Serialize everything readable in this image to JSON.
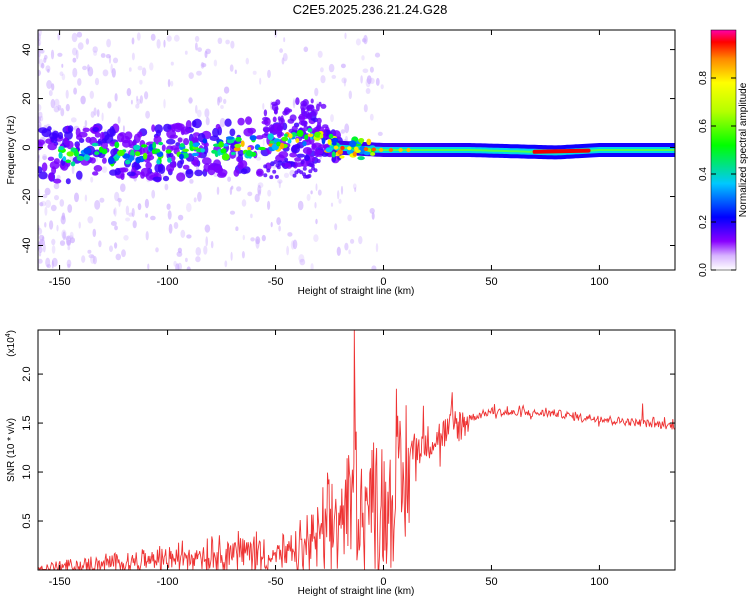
{
  "title": "C2E5.2025.236.21.24.G28",
  "chart_data": [
    {
      "type": "heatmap",
      "name": "spectrogram",
      "xlabel": "Height of straight line (km)",
      "ylabel": "Frequency (Hz)",
      "xlim": [
        -160,
        135
      ],
      "ylim": [
        -50,
        48
      ],
      "xticks": [
        -150,
        -100,
        -50,
        0,
        50,
        100
      ],
      "yticks": [
        -40,
        -20,
        0,
        20,
        40
      ],
      "colorbar": {
        "label": "Normalized spectral amplitude",
        "range": [
          0,
          1
        ],
        "ticks": [
          "0.0",
          "0.2",
          "0.4",
          "0.6",
          "0.8"
        ],
        "tick_values": [
          0,
          0.2,
          0.4,
          0.6,
          0.8
        ]
      },
      "ridge_center_hz": [
        {
          "x": -155,
          "y": -3
        },
        {
          "x": -100,
          "y": -2
        },
        {
          "x": -70,
          "y": 0
        },
        {
          "x": -50,
          "y": 1
        },
        {
          "x": -40,
          "y": 3
        },
        {
          "x": -30,
          "y": 4
        },
        {
          "x": -22,
          "y": 0
        },
        {
          "x": 0,
          "y": -1
        },
        {
          "x": 40,
          "y": -1
        },
        {
          "x": 80,
          "y": -2
        },
        {
          "x": 100,
          "y": -1
        },
        {
          "x": 135,
          "y": -1
        }
      ],
      "peak_amplitude_x_km": [
        70,
        95
      ]
    },
    {
      "type": "line",
      "name": "snr",
      "xlabel": "Height of straight line (km)",
      "ylabel": "SNR (10 * v/v)",
      "scale_label": "(x10",
      "scale_exponent": "4",
      "scale_suffix": ")",
      "xlim": [
        -160,
        135
      ],
      "ylim": [
        0,
        2.45
      ],
      "xticks": [
        -150,
        -100,
        -50,
        0,
        50,
        100
      ],
      "yticks": [
        "0.5",
        "1.0",
        "1.5",
        "2.0"
      ],
      "ytick_values": [
        0.5,
        1.0,
        1.5,
        2.0
      ],
      "color": "#ee3333",
      "x": [
        -160,
        -140,
        -120,
        -100,
        -80,
        -60,
        -50,
        -40,
        -30,
        -20,
        -15,
        -12,
        -10,
        -5,
        0,
        5,
        10,
        20,
        30,
        40,
        50,
        60,
        70,
        80,
        90,
        100,
        110,
        120,
        135
      ],
      "y": [
        0.02,
        0.05,
        0.1,
        0.15,
        0.22,
        0.25,
        0.2,
        0.2,
        0.45,
        0.7,
        0.9,
        1.2,
        0.8,
        0.95,
        0.85,
        1.05,
        1.2,
        1.3,
        1.42,
        1.55,
        1.62,
        1.6,
        1.6,
        1.6,
        1.56,
        1.55,
        1.52,
        1.5,
        1.47
      ],
      "spikes": [
        {
          "x": -13.5,
          "y": 2.45
        },
        {
          "x": 6,
          "y": 1.85
        },
        {
          "x": 120,
          "y": 1.7
        }
      ]
    }
  ]
}
